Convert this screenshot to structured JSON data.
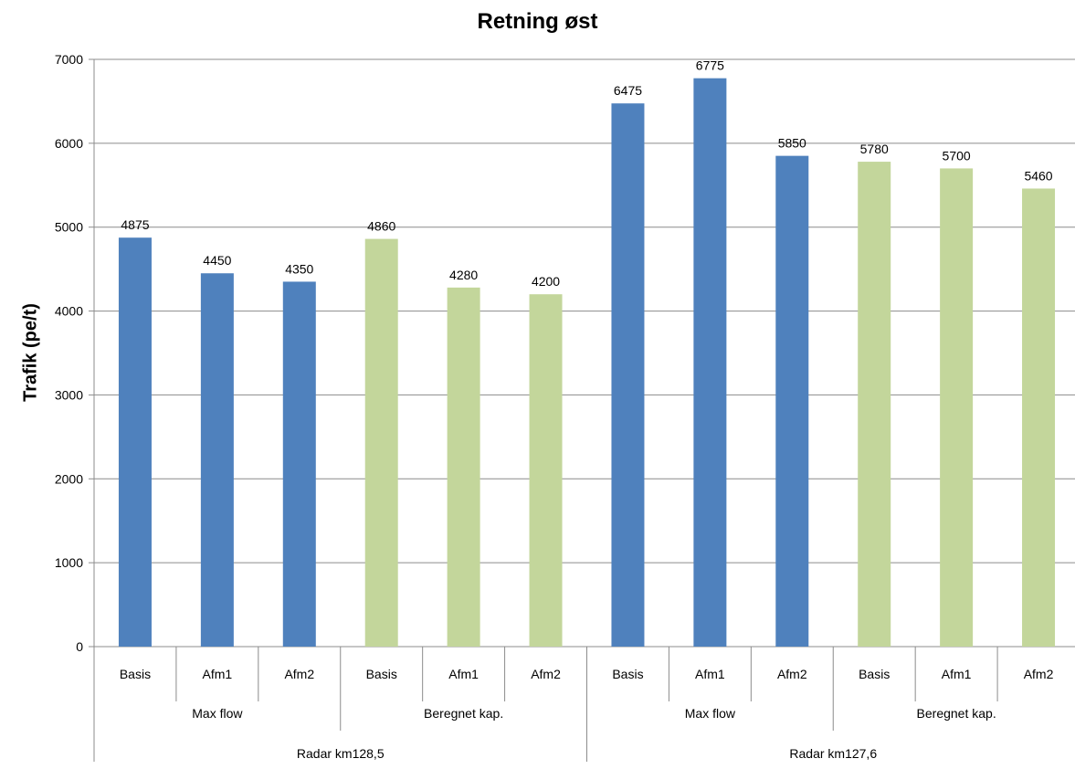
{
  "chart_data": {
    "type": "bar",
    "title": "Retning øst",
    "xlabel": "",
    "ylabel": "Trafik (pe/t)",
    "ylim": [
      0,
      7000
    ],
    "yticks": [
      0,
      1000,
      2000,
      3000,
      4000,
      5000,
      6000,
      7000
    ],
    "grid": true,
    "colors": {
      "Max flow": "#4f81bd",
      "Beregnet kap.": "#c3d69b"
    },
    "categories": [
      "Basis",
      "Afm1",
      "Afm2",
      "Basis",
      "Afm1",
      "Afm2",
      "Basis",
      "Afm1",
      "Afm2",
      "Basis",
      "Afm1",
      "Afm2"
    ],
    "values": [
      4875,
      4450,
      4350,
      4860,
      4280,
      4200,
      6475,
      6775,
      5850,
      5780,
      5700,
      5460
    ],
    "method_groups": [
      "Max flow",
      "Beregnet kap.",
      "Max flow",
      "Beregnet kap."
    ],
    "location_groups": [
      "Radar km128,5",
      "Radar km127,6"
    ]
  }
}
